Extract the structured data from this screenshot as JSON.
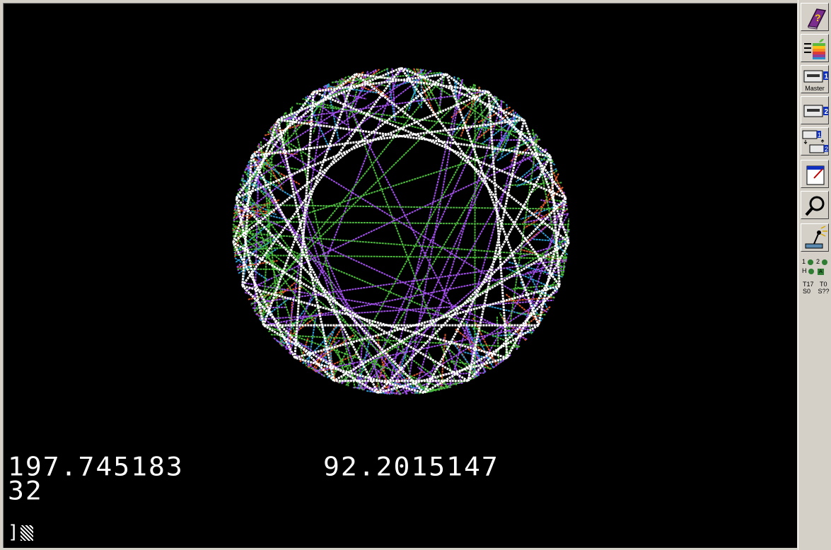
{
  "display": {
    "readout_left": "197.745183",
    "readout_right": "92.2015147",
    "readout_line2": "32",
    "prompt": "]",
    "colors": {
      "background": "#000000",
      "white": "#ffffff",
      "violet": "#a050e8",
      "green": "#4cbc3c",
      "orange": "#e05a2a",
      "blue": "#2f9ed8"
    }
  },
  "toolbar": {
    "buttons": [
      {
        "icon": "help-book-icon"
      },
      {
        "icon": "run-apple-icon"
      },
      {
        "icon": "drive1-icon",
        "caption": "Master",
        "badge": "1"
      },
      {
        "icon": "drive2-icon",
        "badge": "2"
      },
      {
        "icon": "swap-drives-icon",
        "badge1": "1",
        "badge2": "2"
      },
      {
        "icon": "fullscreen-icon"
      },
      {
        "icon": "debug-magnifier-icon"
      },
      {
        "icon": "joystick-settings-icon"
      }
    ],
    "leds": {
      "l1": "1",
      "l2": "2",
      "l3": "H"
    },
    "stats": {
      "track": "T17",
      "track2": "T0",
      "sector": "S0",
      "sector2": "S??"
    }
  }
}
